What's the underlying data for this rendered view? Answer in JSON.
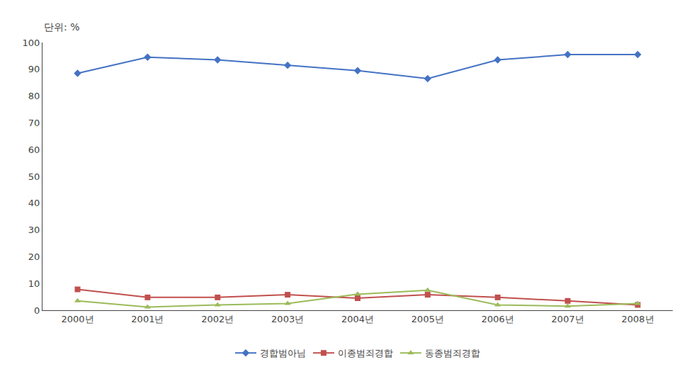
{
  "chart_data": {
    "type": "line",
    "annotations": [
      "단위: %"
    ],
    "categories": [
      "2000년",
      "2001년",
      "2002년",
      "2003년",
      "2004년",
      "2005년",
      "2006년",
      "2007년",
      "2008년"
    ],
    "series": [
      {
        "name": "경합범아님",
        "color": "#4472C4",
        "marker": "diamond",
        "values": [
          88.5,
          94.5,
          93.5,
          91.5,
          89.5,
          86.5,
          93.5,
          95.5,
          95.5
        ]
      },
      {
        "name": "이종범죄경합",
        "color": "#C0504D",
        "marker": "square",
        "values": [
          7.8,
          4.8,
          4.8,
          5.8,
          4.5,
          5.8,
          4.8,
          3.5,
          2.0
        ]
      },
      {
        "name": "동종범죄경합",
        "color": "#9BBB59",
        "marker": "triangle-up",
        "values": [
          3.5,
          1.2,
          2.0,
          2.5,
          6.0,
          7.5,
          2.0,
          1.5,
          2.5
        ]
      }
    ],
    "ylim": [
      0,
      100
    ],
    "yticks": [
      0,
      10,
      20,
      30,
      40,
      50,
      60,
      70,
      80,
      90,
      100
    ],
    "grid": false,
    "legend": "bottom"
  }
}
